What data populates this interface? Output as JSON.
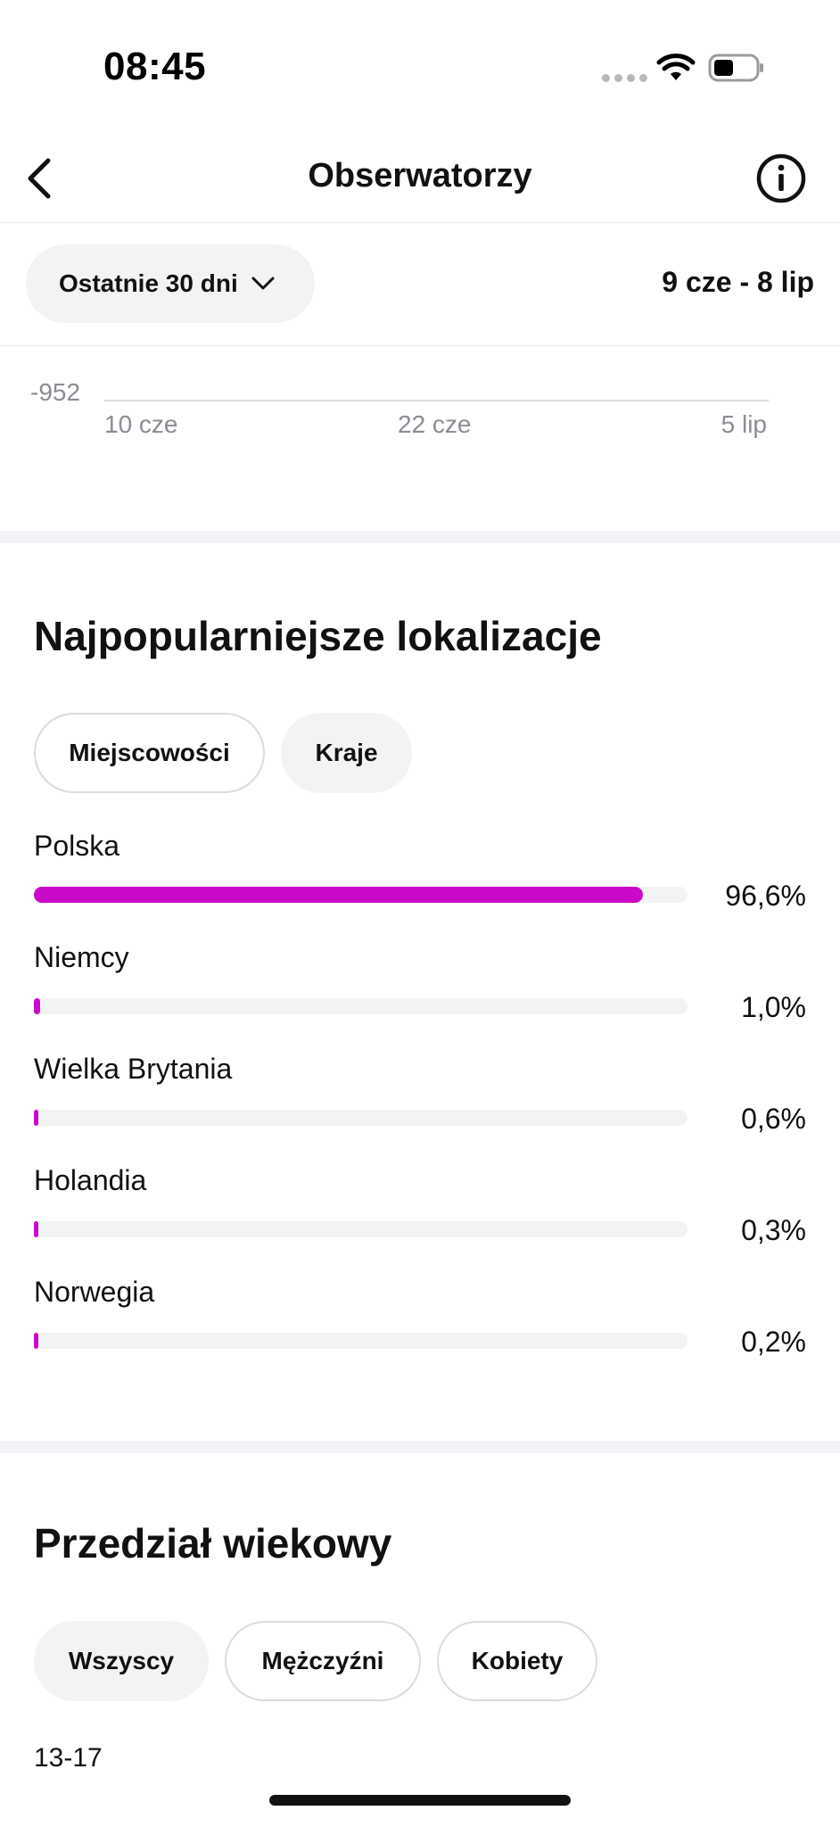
{
  "status_bar": {
    "time": "08:45"
  },
  "header": {
    "title": "Obserwatorzy",
    "back_icon": "chevron-left-icon",
    "info_icon": "info-icon"
  },
  "range": {
    "selector_label": "Ostatnie 30 dni",
    "date_range": "9 cze - 8 lip"
  },
  "chart_data": {
    "type": "line",
    "y_tick": "-952",
    "x_ticks": [
      "10 cze",
      "22 cze",
      "5 lip"
    ]
  },
  "locations": {
    "title": "Najpopularniejsze lokalizacje",
    "tabs": [
      {
        "label": "Miejscowości",
        "selected": false
      },
      {
        "label": "Kraje",
        "selected": true
      }
    ],
    "bar_color": "#c90bc9",
    "items": [
      {
        "name": "Polska",
        "percent_label": "96,6%",
        "value": 96.6
      },
      {
        "name": "Niemcy",
        "percent_label": "1,0%",
        "value": 1.0
      },
      {
        "name": "Wielka Brytania",
        "percent_label": "0,6%",
        "value": 0.6
      },
      {
        "name": "Holandia",
        "percent_label": "0,3%",
        "value": 0.3
      },
      {
        "name": "Norwegia",
        "percent_label": "0,2%",
        "value": 0.2
      }
    ]
  },
  "age": {
    "title": "Przedział wiekowy",
    "tabs": [
      {
        "label": "Wszyscy",
        "selected": true
      },
      {
        "label": "Mężczyźni",
        "selected": false
      },
      {
        "label": "Kobiety",
        "selected": false
      }
    ],
    "first_bucket_label": "13-17"
  }
}
